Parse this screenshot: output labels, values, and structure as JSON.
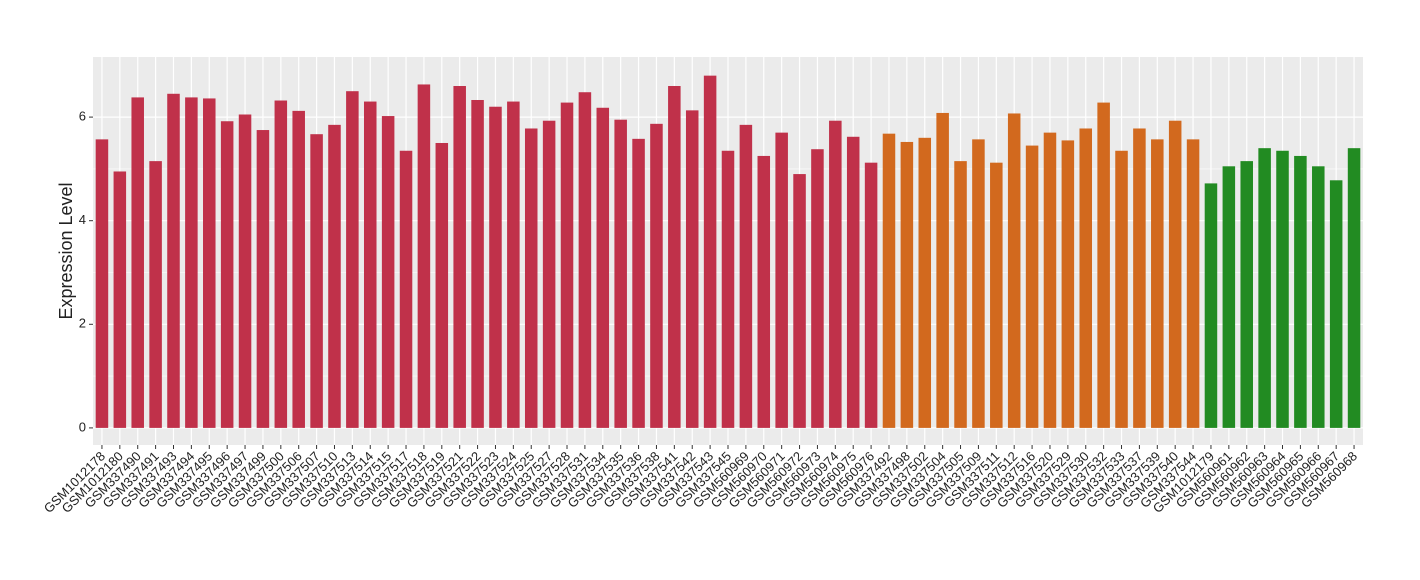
{
  "chart_data": {
    "type": "bar",
    "y_label": "Expression Level",
    "categories": [
      "GSM1012178",
      "GSM1012180",
      "GSM337490",
      "GSM337491",
      "GSM337493",
      "GSM337494",
      "GSM337495",
      "GSM337496",
      "GSM337497",
      "GSM337499",
      "GSM337500",
      "GSM337506",
      "GSM337507",
      "GSM337510",
      "GSM337513",
      "GSM337514",
      "GSM337515",
      "GSM337517",
      "GSM337518",
      "GSM337519",
      "GSM337521",
      "GSM337522",
      "GSM337523",
      "GSM337524",
      "GSM337525",
      "GSM337527",
      "GSM337528",
      "GSM337531",
      "GSM337534",
      "GSM337535",
      "GSM337536",
      "GSM337538",
      "GSM337541",
      "GSM337542",
      "GSM337543",
      "GSM337545",
      "GSM560969",
      "GSM560970",
      "GSM560971",
      "GSM560972",
      "GSM560973",
      "GSM560974",
      "GSM560975",
      "GSM560976",
      "GSM337492",
      "GSM337498",
      "GSM337502",
      "GSM337504",
      "GSM337505",
      "GSM337509",
      "GSM337511",
      "GSM337512",
      "GSM337516",
      "GSM337520",
      "GSM337529",
      "GSM337530",
      "GSM337532",
      "GSM337533",
      "GSM337537",
      "GSM337539",
      "GSM337540",
      "GSM337544",
      "GSM1012179",
      "GSM560961",
      "GSM560962",
      "GSM560963",
      "GSM560964",
      "GSM560965",
      "GSM560966",
      "GSM560967",
      "GSM560968"
    ],
    "values": [
      5.57,
      4.95,
      6.38,
      5.15,
      6.45,
      6.38,
      6.36,
      5.92,
      6.05,
      5.75,
      6.32,
      6.12,
      5.67,
      5.85,
      6.5,
      6.3,
      6.02,
      5.35,
      6.63,
      5.5,
      6.6,
      6.33,
      6.2,
      6.3,
      5.78,
      5.93,
      6.28,
      6.48,
      6.18,
      5.95,
      5.58,
      5.87,
      6.6,
      6.13,
      6.8,
      5.35,
      5.85,
      5.25,
      5.7,
      4.9,
      5.38,
      5.93,
      5.62,
      5.12,
      5.68,
      5.52,
      5.6,
      6.08,
      5.15,
      5.57,
      5.12,
      6.07,
      5.45,
      5.7,
      5.55,
      5.78,
      6.28,
      5.35,
      5.78,
      5.57,
      5.93,
      5.57,
      4.72,
      5.05,
      5.15,
      5.4,
      5.35,
      5.25,
      5.05,
      4.78,
      5.4
    ],
    "colors": [
      "#c0314a",
      "#c0314a",
      "#c0314a",
      "#c0314a",
      "#c0314a",
      "#c0314a",
      "#c0314a",
      "#c0314a",
      "#c0314a",
      "#c0314a",
      "#c0314a",
      "#c0314a",
      "#c0314a",
      "#c0314a",
      "#c0314a",
      "#c0314a",
      "#c0314a",
      "#c0314a",
      "#c0314a",
      "#c0314a",
      "#c0314a",
      "#c0314a",
      "#c0314a",
      "#c0314a",
      "#c0314a",
      "#c0314a",
      "#c0314a",
      "#c0314a",
      "#c0314a",
      "#c0314a",
      "#c0314a",
      "#c0314a",
      "#c0314a",
      "#c0314a",
      "#c0314a",
      "#c0314a",
      "#c0314a",
      "#c0314a",
      "#c0314a",
      "#c0314a",
      "#c0314a",
      "#c0314a",
      "#c0314a",
      "#c0314a",
      "#d2691e",
      "#d2691e",
      "#d2691e",
      "#d2691e",
      "#d2691e",
      "#d2691e",
      "#d2691e",
      "#d2691e",
      "#d2691e",
      "#d2691e",
      "#d2691e",
      "#d2691e",
      "#d2691e",
      "#d2691e",
      "#d2691e",
      "#d2691e",
      "#d2691e",
      "#d2691e",
      "#228b22",
      "#228b22",
      "#228b22",
      "#228b22",
      "#228b22",
      "#228b22",
      "#228b22",
      "#228b22",
      "#228b22"
    ],
    "ylim": [
      -0.33,
      7.16
    ],
    "yticks": [
      0,
      2,
      4,
      6
    ],
    "grid": true
  }
}
